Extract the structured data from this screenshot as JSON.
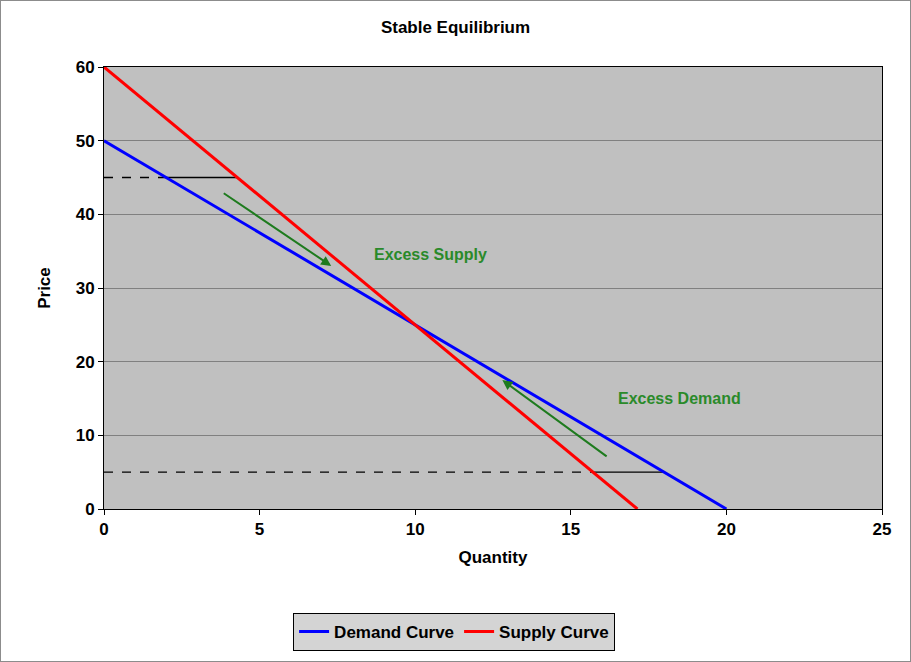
{
  "chart_data": {
    "type": "line",
    "title": "Stable Equilibrium",
    "x_label": "Quantity",
    "y_label": "Price",
    "series": [
      {
        "name": "Demand Curve",
        "color": "#0000ff",
        "x": [
          0,
          20
        ],
        "values": [
          50,
          0
        ]
      },
      {
        "name": "Supply Curve",
        "color": "#ff0000",
        "x": [
          0,
          17.14
        ],
        "values": [
          60,
          0
        ]
      }
    ],
    "guides": [
      {
        "x": [
          0,
          2
        ],
        "values": [
          45,
          45
        ],
        "color": "#000000",
        "line_style": "dash"
      },
      {
        "x": [
          2,
          4.29
        ],
        "values": [
          45,
          45
        ],
        "color": "#000000",
        "line_style": "solid"
      },
      {
        "x": [
          0,
          15.71
        ],
        "values": [
          5,
          5
        ],
        "color": "#000000",
        "line_style": "dash"
      },
      {
        "x": [
          15.71,
          18
        ],
        "values": [
          5,
          5
        ],
        "color": "#000000",
        "line_style": "solid"
      }
    ],
    "arrows": [
      {
        "x": [
          3.8,
          7.3
        ],
        "values": [
          43,
          33
        ],
        "color": "#1e7b1e"
      },
      {
        "x": [
          16.2,
          12.8
        ],
        "values": [
          7,
          17.5
        ],
        "color": "#1e7b1e"
      }
    ],
    "annotations": [
      {
        "text": "Excess Supply",
        "x": 10.5,
        "y": 34.5,
        "color": "#2a8a2a"
      },
      {
        "text": "Excess Demand",
        "x": 18.5,
        "y": 15,
        "color": "#2a8a2a"
      }
    ],
    "xlim": [
      0,
      25
    ],
    "xticks": [
      0,
      5,
      10,
      15,
      20,
      25
    ],
    "ylim": [
      0,
      60
    ],
    "yticks": [
      0,
      10,
      20,
      30,
      40,
      50,
      60
    ],
    "grid": "y",
    "legend": "bottom"
  }
}
